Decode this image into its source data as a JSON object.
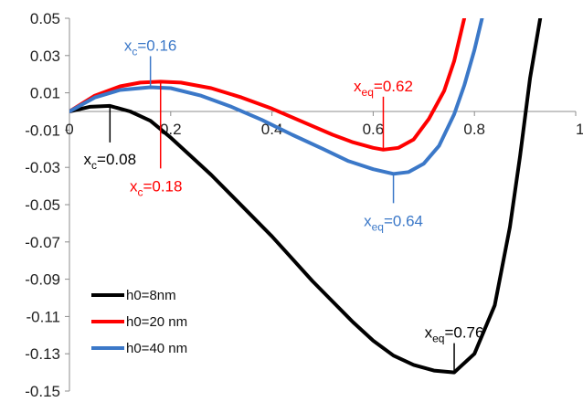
{
  "chart_data": {
    "type": "line",
    "title": "",
    "xlabel": "",
    "ylabel": "",
    "xlim": [
      0,
      1
    ],
    "ylim": [
      -0.15,
      0.05
    ],
    "x_ticks": [
      "0",
      "0.2",
      "0.4",
      "0.6",
      "0.8",
      "1"
    ],
    "y_ticks": [
      "0.05",
      "0.03",
      "0.01",
      "-0.01",
      "-0.03",
      "-0.05",
      "-0.07",
      "-0.09",
      "-0.11",
      "-0.13",
      "-0.15"
    ],
    "x_axis_at_y": 0,
    "grid": false,
    "legend_position": "bottom-left",
    "series": [
      {
        "name": "h0=8nm",
        "color": "#000000",
        "points": [
          [
            0,
            0
          ],
          [
            0.04,
            0.0025
          ],
          [
            0.08,
            0.003
          ],
          [
            0.12,
            0.0
          ],
          [
            0.16,
            -0.005
          ],
          [
            0.2,
            -0.014
          ],
          [
            0.24,
            -0.024
          ],
          [
            0.28,
            -0.034
          ],
          [
            0.32,
            -0.045
          ],
          [
            0.36,
            -0.056
          ],
          [
            0.4,
            -0.067
          ],
          [
            0.44,
            -0.079
          ],
          [
            0.48,
            -0.091
          ],
          [
            0.52,
            -0.102
          ],
          [
            0.56,
            -0.113
          ],
          [
            0.6,
            -0.123
          ],
          [
            0.64,
            -0.131
          ],
          [
            0.68,
            -0.136
          ],
          [
            0.72,
            -0.139
          ],
          [
            0.76,
            -0.14
          ],
          [
            0.8,
            -0.13
          ],
          [
            0.84,
            -0.104
          ],
          [
            0.87,
            -0.062
          ],
          [
            0.89,
            -0.024
          ],
          [
            0.91,
            0.018
          ],
          [
            0.93,
            0.05
          ]
        ]
      },
      {
        "name": "h0=20 nm",
        "color": "#ff0000",
        "points": [
          [
            0,
            0
          ],
          [
            0.05,
            0.0085
          ],
          [
            0.1,
            0.0135
          ],
          [
            0.14,
            0.0155
          ],
          [
            0.18,
            0.016
          ],
          [
            0.22,
            0.0155
          ],
          [
            0.28,
            0.0125
          ],
          [
            0.34,
            0.0075
          ],
          [
            0.4,
            0.0015
          ],
          [
            0.46,
            -0.0055
          ],
          [
            0.52,
            -0.0125
          ],
          [
            0.56,
            -0.0165
          ],
          [
            0.6,
            -0.0195
          ],
          [
            0.62,
            -0.0205
          ],
          [
            0.65,
            -0.0195
          ],
          [
            0.68,
            -0.015
          ],
          [
            0.71,
            -0.004
          ],
          [
            0.74,
            0.011
          ],
          [
            0.76,
            0.027
          ],
          [
            0.78,
            0.05
          ]
        ]
      },
      {
        "name": "h0=40 nm",
        "color": "#3b78c8",
        "points": [
          [
            0,
            0
          ],
          [
            0.05,
            0.0075
          ],
          [
            0.1,
            0.0115
          ],
          [
            0.16,
            0.013
          ],
          [
            0.2,
            0.0125
          ],
          [
            0.26,
            0.0085
          ],
          [
            0.32,
            0.0025
          ],
          [
            0.38,
            -0.0045
          ],
          [
            0.44,
            -0.0125
          ],
          [
            0.5,
            -0.02
          ],
          [
            0.55,
            -0.0265
          ],
          [
            0.6,
            -0.031
          ],
          [
            0.64,
            -0.0335
          ],
          [
            0.67,
            -0.0325
          ],
          [
            0.7,
            -0.028
          ],
          [
            0.73,
            -0.0185
          ],
          [
            0.76,
            -0.0015
          ],
          [
            0.78,
            0.014
          ],
          [
            0.8,
            0.033
          ],
          [
            0.815,
            0.05
          ]
        ]
      }
    ],
    "annotations": [
      {
        "main": "x",
        "sub": "c",
        "value": "=0.16",
        "color": "#3b78c8",
        "point": [
          0.16,
          0.013
        ]
      },
      {
        "main": "x",
        "sub": "eq",
        "value": "=0.62",
        "color": "#ff0000",
        "point": [
          0.62,
          -0.0205
        ]
      },
      {
        "main": "x",
        "sub": "c",
        "value": "=0.08",
        "color": "#000000",
        "point": [
          0.08,
          0.003
        ]
      },
      {
        "main": "x",
        "sub": "c",
        "value": "=0.18",
        "color": "#ff0000",
        "point": [
          0.18,
          0.016
        ]
      },
      {
        "main": "x",
        "sub": "eq",
        "value": "=0.64",
        "color": "#3b78c8",
        "point": [
          0.64,
          -0.0335
        ]
      },
      {
        "main": "x",
        "sub": "eq",
        "value": "=0.76",
        "color": "#000000",
        "point": [
          0.76,
          -0.14
        ]
      }
    ]
  }
}
